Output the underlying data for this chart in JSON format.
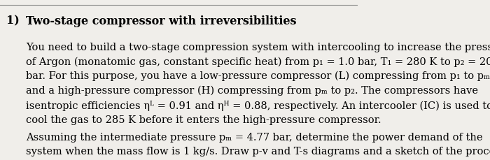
{
  "title_number": "1)",
  "title_text": "Two-stage compressor with irreversibilities",
  "paragraph1": "You need to build a two-stage compression system with intercooling to increase the pressure\nof Argon (monatomic gas, constant specific heat) from p₁ = 1.0 bar, T₁ = 280 K to p₂ = 20\nbar. For this purpose, you have a low-pressure compressor (L) compressing from p₁ to pₘ\nand a high-pressure compressor (H) compressing from pₘ to p₂. The compressors have\nisentropic efficiencies ηᴸ = 0.91 and ηᴴ = 0.88, respectively. An intercooler (IC) is used to\ncool the gas to 285 K before it enters the high-pressure compressor.",
  "paragraph2": "Assuming the intermediate pressure pₘ = 4.77 bar, determine the power demand of the\nsystem when the mass flow is 1 kg/s. Draw p-v and T-s diagrams and a sketch of the process.",
  "bg_color": "#f0eeea",
  "title_fontsize": 11.5,
  "body_fontsize": 10.5,
  "number_fontsize": 11.5,
  "line_color": "#888888"
}
